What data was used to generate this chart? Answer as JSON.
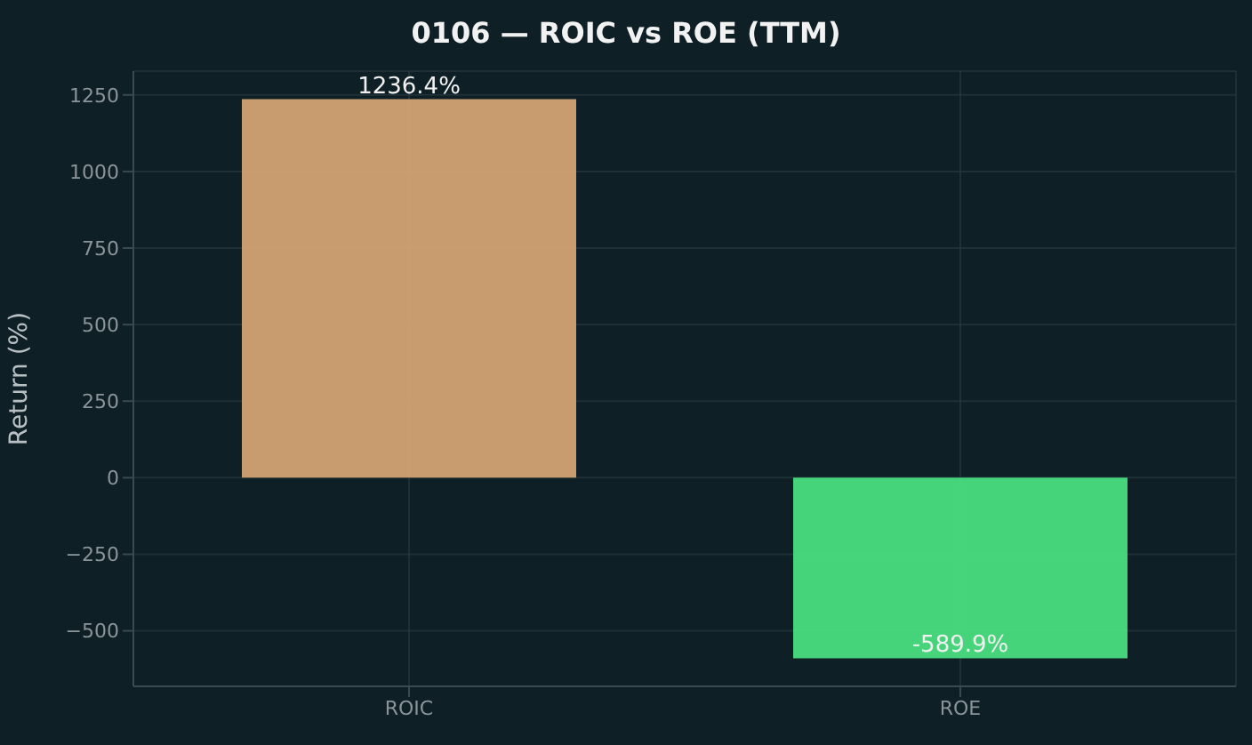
{
  "chart_data": {
    "type": "bar",
    "title": "0106 — ROIC vs ROE (TTM)",
    "ylabel": "Return (%)",
    "categories": [
      "ROIC",
      "ROE"
    ],
    "values": [
      1236.4,
      -589.9
    ],
    "colors": [
      "#d4a373",
      "#4ade80"
    ],
    "value_labels": [
      "1236.4%",
      "-589.9%"
    ],
    "ylim": [
      -681.2,
      1327.7
    ],
    "yticks": [
      {
        "value": -500,
        "label": "−500"
      },
      {
        "value": -250,
        "label": "−250"
      },
      0,
      250,
      500,
      750,
      1000,
      1250
    ],
    "grid": true
  }
}
